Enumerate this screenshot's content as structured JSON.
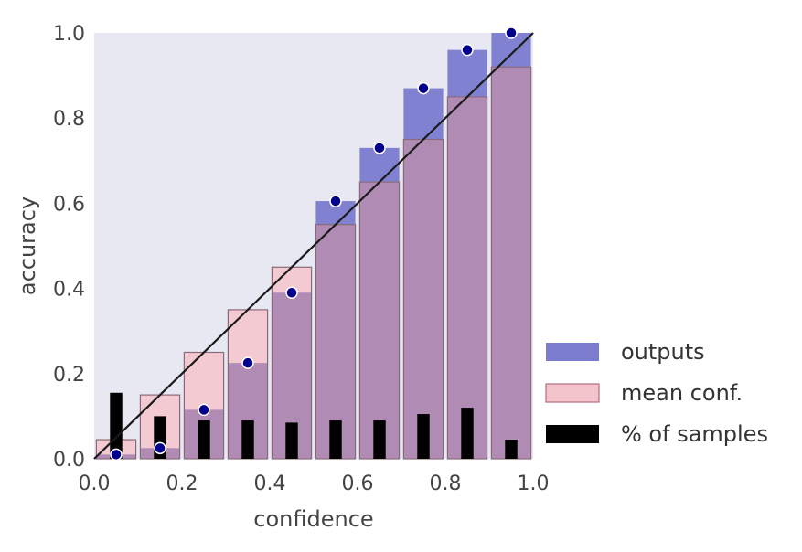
{
  "chart_data": {
    "type": "bar",
    "xlabel": "confidence",
    "ylabel": "accuracy",
    "xlim": [
      0.0,
      1.0
    ],
    "ylim": [
      0.0,
      1.0
    ],
    "xticks": [
      "0.0",
      "0.2",
      "0.4",
      "0.6",
      "0.8",
      "1.0"
    ],
    "yticks": [
      "0.0",
      "0.2",
      "0.4",
      "0.6",
      "0.8",
      "1.0"
    ],
    "grid": false,
    "legend_position": "outside-right-bottom",
    "bin_centers": [
      0.05,
      0.15,
      0.25,
      0.35,
      0.45,
      0.55,
      0.65,
      0.75,
      0.85,
      0.95
    ],
    "series": [
      {
        "name": "outputs",
        "color": "#7b7bd0",
        "values": [
          0.01,
          0.025,
          0.115,
          0.225,
          0.39,
          0.605,
          0.73,
          0.87,
          0.96,
          1.0
        ]
      },
      {
        "name": "mean conf.",
        "color": "#f4c4cc",
        "values": [
          0.045,
          0.15,
          0.25,
          0.35,
          0.45,
          0.55,
          0.65,
          0.75,
          0.85,
          0.92
        ]
      },
      {
        "name": "% of samples",
        "color": "#000000",
        "values": [
          0.155,
          0.1,
          0.09,
          0.09,
          0.085,
          0.09,
          0.09,
          0.105,
          0.12,
          0.045
        ]
      }
    ],
    "diagonal": [
      [
        0.0,
        0.0
      ],
      [
        1.0,
        1.0
      ]
    ],
    "colors": {
      "plot_background": "#e8e8f2",
      "overlap": "#b08cb5",
      "points": "#00008b",
      "diagonal": "#1a1a1a"
    }
  }
}
